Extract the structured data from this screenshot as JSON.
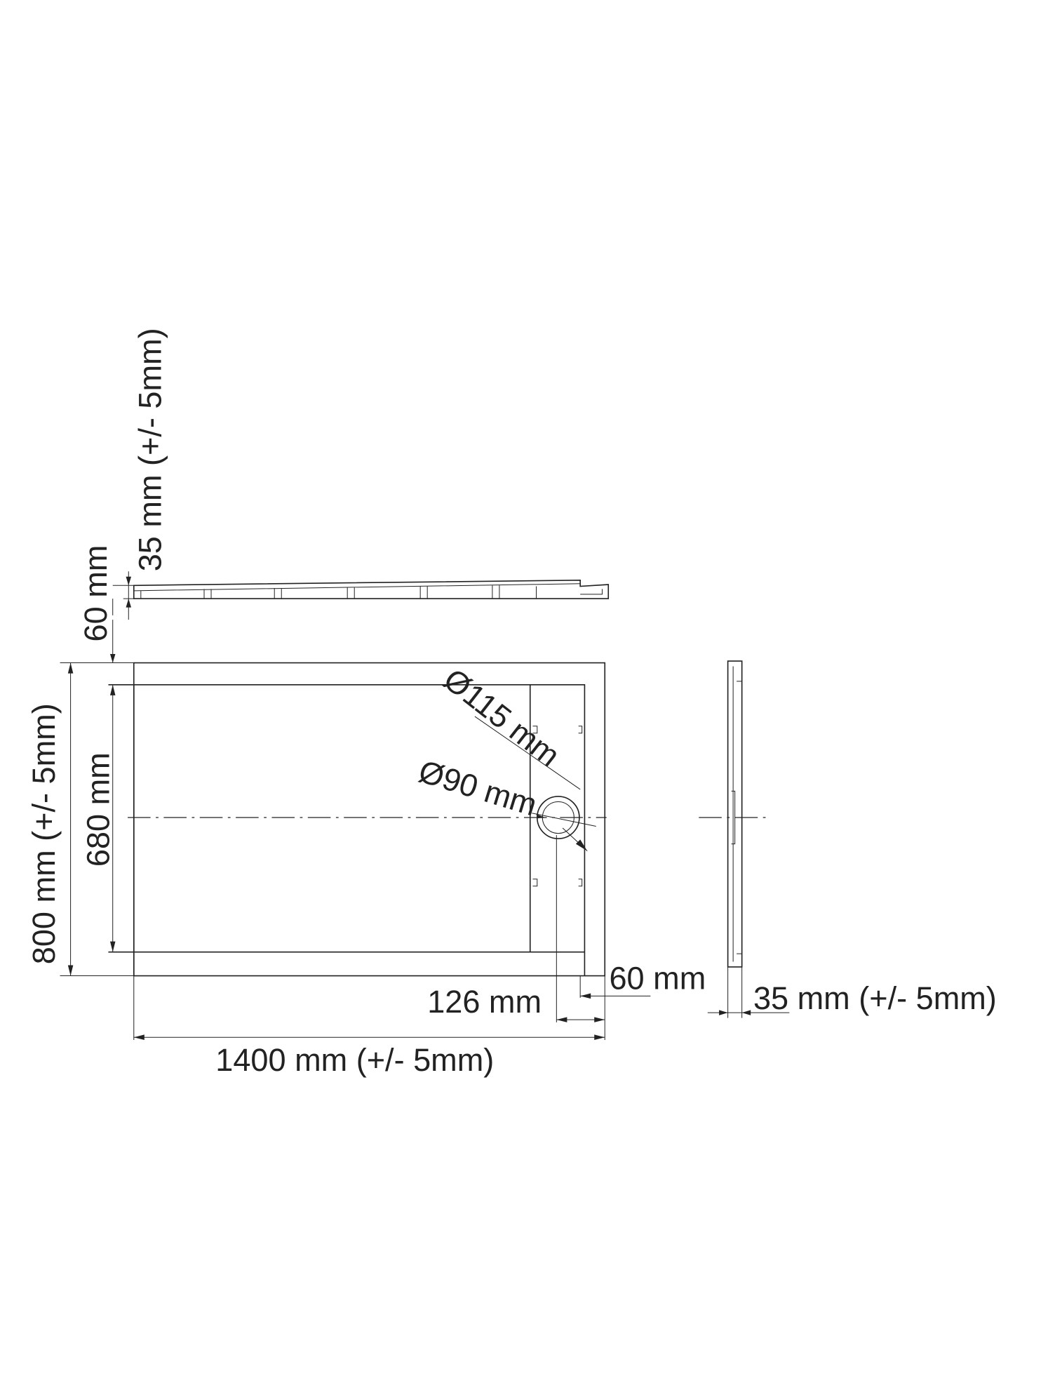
{
  "drawing": {
    "labels": {
      "top_height": "35 mm (+/- 5mm)",
      "top_total": "60 mm",
      "width": "800 mm (+/- 5mm)",
      "inner_width": "680 mm",
      "outer_drain": "Ø115 mm",
      "inner_drain": "Ø90 mm",
      "drain_edge": "60 mm",
      "drain_offset": "126 mm",
      "side_height": "35 mm (+/- 5mm)",
      "length": "1400 mm (+/- 5mm)"
    }
  }
}
